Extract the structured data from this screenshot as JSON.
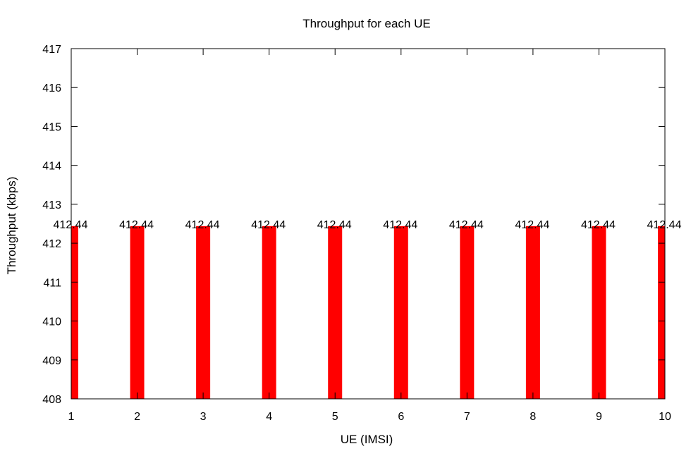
{
  "chart_data": {
    "type": "bar",
    "title": "Throughput for each UE",
    "xlabel": "UE (IMSI)",
    "ylabel": "Throughput (kbps)",
    "categories": [
      1,
      2,
      3,
      4,
      5,
      6,
      7,
      8,
      9,
      10
    ],
    "series": [
      {
        "values": [
          412.44,
          412.44,
          412.44,
          412.44,
          412.44,
          412.44,
          412.44,
          412.44,
          412.44,
          412.44
        ]
      }
    ],
    "data_labels": [
      "412.44",
      "412.44",
      "412.44",
      "412.44",
      "412.44",
      "412.44",
      "412.44",
      "412.44",
      "412.44",
      "412.44"
    ],
    "xlim": [
      1,
      10
    ],
    "ylim": [
      408,
      417
    ],
    "yticks": [
      408,
      409,
      410,
      411,
      412,
      413,
      414,
      415,
      416,
      417
    ],
    "xticks": [
      1,
      2,
      3,
      4,
      5,
      6,
      7,
      8,
      9,
      10
    ],
    "bar_color": "#ff0000",
    "grid": false,
    "legend": "none"
  }
}
